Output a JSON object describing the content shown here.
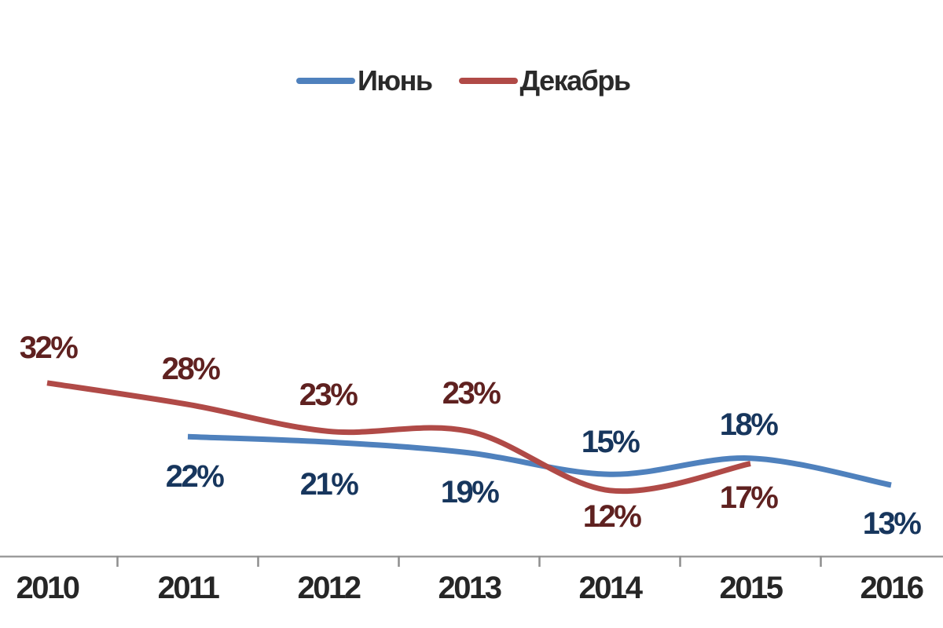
{
  "legend": {
    "items": [
      {
        "label": "Июнь",
        "color": "#4f81bd"
      },
      {
        "label": "Декабрь",
        "color": "#b04a47"
      }
    ]
  },
  "chart_data": {
    "type": "line",
    "smoothed": true,
    "title": "",
    "unit": "%",
    "categories": [
      "2010",
      "2011",
      "2012",
      "2013",
      "2014",
      "2015",
      "2016"
    ],
    "series": [
      {
        "name": "Июнь",
        "color": "#4f81bd",
        "label_color": "#17365d",
        "values": [
          null,
          22,
          21,
          19,
          15,
          18,
          13
        ],
        "label_offsets": [
          null,
          [
            8,
            51
          ],
          [
            0,
            54
          ],
          [
            0,
            50
          ],
          [
            0,
            -41
          ],
          [
            -3,
            -43
          ],
          [
            0,
            49
          ]
        ]
      },
      {
        "name": "Декабрь",
        "color": "#b04a47",
        "label_color": "#5f2120",
        "values": [
          32,
          28,
          23,
          23,
          12,
          17,
          null
        ],
        "label_offsets": [
          [
            1,
            -45
          ],
          [
            3,
            -45
          ],
          [
            -1,
            -46
          ],
          [
            2,
            -48
          ],
          [
            2,
            33
          ],
          [
            -3,
            43
          ],
          null
        ]
      }
    ],
    "data_labels_visible": true,
    "legend_position": "top-center",
    "x_axis": {
      "visible": true,
      "line_color": "#9c9c9c",
      "tick_color": "#8e8e8e"
    },
    "y_axis": {
      "visible": false,
      "min": 0,
      "max": 35
    },
    "grid": "off"
  }
}
